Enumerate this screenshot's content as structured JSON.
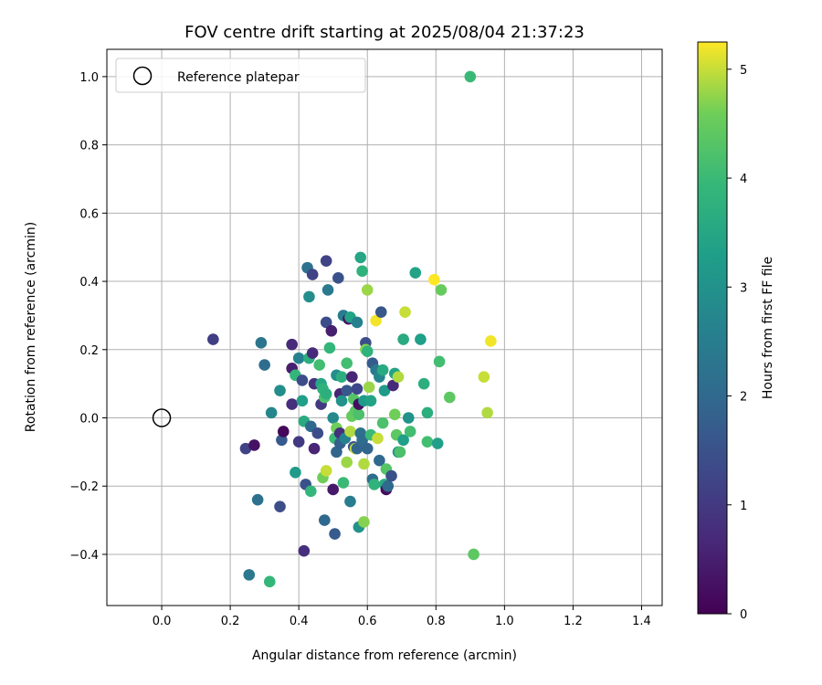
{
  "chart_data": {
    "type": "scatter",
    "title": "FOV centre drift starting at 2025/08/04 21:37:23",
    "xlabel": "Angular distance from reference (arcmin)",
    "ylabel": "Rotation from reference (arcmin)",
    "xlim": [
      -0.16,
      1.46
    ],
    "ylim": [
      -0.55,
      1.08
    ],
    "xticks": [
      "0.0",
      "0.2",
      "0.4",
      "0.6",
      "0.8",
      "1.0",
      "1.2",
      "1.4"
    ],
    "yticks": [
      "−0.4",
      "−0.2",
      "0.0",
      "0.2",
      "0.4",
      "0.6",
      "0.8",
      "1.0"
    ],
    "grid": true,
    "legend": {
      "position": "top-left",
      "entries": [
        "Reference platepar"
      ]
    },
    "reference_point": {
      "x": 0.0,
      "y": 0.0
    },
    "colorbar": {
      "label": "Hours from first FF file",
      "range": [
        0,
        5.25
      ],
      "ticks": [
        "0",
        "1",
        "2",
        "3",
        "4",
        "5"
      ],
      "colormap": "viridis"
    },
    "points": [
      {
        "x": 0.15,
        "y": 0.23,
        "c": 1.1
      },
      {
        "x": 0.245,
        "y": -0.09,
        "c": 1.2
      },
      {
        "x": 0.27,
        "y": -0.08,
        "c": 0.3
      },
      {
        "x": 0.28,
        "y": -0.24,
        "c": 2.2
      },
      {
        "x": 0.29,
        "y": 0.22,
        "c": 2.3
      },
      {
        "x": 0.3,
        "y": 0.155,
        "c": 2.1
      },
      {
        "x": 0.255,
        "y": -0.46,
        "c": 2.4
      },
      {
        "x": 0.32,
        "y": 0.015,
        "c": 2.7
      },
      {
        "x": 0.315,
        "y": -0.48,
        "c": 3.9
      },
      {
        "x": 0.345,
        "y": -0.26,
        "c": 1.4
      },
      {
        "x": 0.345,
        "y": 0.08,
        "c": 2.9
      },
      {
        "x": 0.35,
        "y": -0.065,
        "c": 1.7
      },
      {
        "x": 0.355,
        "y": -0.04,
        "c": 0.1
      },
      {
        "x": 0.38,
        "y": 0.215,
        "c": 0.7
      },
      {
        "x": 0.38,
        "y": 0.145,
        "c": 0.5
      },
      {
        "x": 0.38,
        "y": 0.04,
        "c": 0.8
      },
      {
        "x": 0.39,
        "y": -0.16,
        "c": 3.2
      },
      {
        "x": 0.39,
        "y": 0.125,
        "c": 3.9
      },
      {
        "x": 0.4,
        "y": 0.175,
        "c": 2.6
      },
      {
        "x": 0.4,
        "y": -0.07,
        "c": 1.0
      },
      {
        "x": 0.41,
        "y": 0.05,
        "c": 3.3
      },
      {
        "x": 0.41,
        "y": 0.11,
        "c": 1.4
      },
      {
        "x": 0.415,
        "y": -0.39,
        "c": 0.8
      },
      {
        "x": 0.415,
        "y": -0.01,
        "c": 3.6
      },
      {
        "x": 0.42,
        "y": -0.195,
        "c": 1.5
      },
      {
        "x": 0.425,
        "y": 0.44,
        "c": 2.2
      },
      {
        "x": 0.43,
        "y": 0.355,
        "c": 2.9
      },
      {
        "x": 0.43,
        "y": 0.175,
        "c": 3.7
      },
      {
        "x": 0.435,
        "y": -0.025,
        "c": 2.0
      },
      {
        "x": 0.435,
        "y": -0.215,
        "c": 3.9
      },
      {
        "x": 0.44,
        "y": 0.42,
        "c": 1.2
      },
      {
        "x": 0.44,
        "y": 0.19,
        "c": 0.7
      },
      {
        "x": 0.445,
        "y": 0.1,
        "c": 0.9
      },
      {
        "x": 0.445,
        "y": -0.09,
        "c": 0.6
      },
      {
        "x": 0.455,
        "y": -0.045,
        "c": 1.4
      },
      {
        "x": 0.46,
        "y": 0.155,
        "c": 4.1
      },
      {
        "x": 0.465,
        "y": 0.1,
        "c": 3.5
      },
      {
        "x": 0.465,
        "y": 0.04,
        "c": 1.0
      },
      {
        "x": 0.47,
        "y": 0.085,
        "c": 3.8
      },
      {
        "x": 0.47,
        "y": -0.175,
        "c": 4.6
      },
      {
        "x": 0.475,
        "y": 0.06,
        "c": 4.2
      },
      {
        "x": 0.475,
        "y": -0.3,
        "c": 2.0
      },
      {
        "x": 0.48,
        "y": 0.46,
        "c": 1.2
      },
      {
        "x": 0.48,
        "y": 0.28,
        "c": 1.4
      },
      {
        "x": 0.48,
        "y": 0.07,
        "c": 3.7
      },
      {
        "x": 0.48,
        "y": -0.155,
        "c": 5.0
      },
      {
        "x": 0.485,
        "y": 0.375,
        "c": 2.4
      },
      {
        "x": 0.49,
        "y": 0.205,
        "c": 3.9
      },
      {
        "x": 0.495,
        "y": 0.255,
        "c": 0.5
      },
      {
        "x": 0.5,
        "y": -0.21,
        "c": 0.4
      },
      {
        "x": 0.5,
        "y": 0.0,
        "c": 2.8
      },
      {
        "x": 0.505,
        "y": -0.06,
        "c": 4.0
      },
      {
        "x": 0.505,
        "y": -0.34,
        "c": 1.7
      },
      {
        "x": 0.51,
        "y": 0.125,
        "c": 2.9
      },
      {
        "x": 0.51,
        "y": -0.1,
        "c": 1.9
      },
      {
        "x": 0.51,
        "y": -0.03,
        "c": 4.6
      },
      {
        "x": 0.515,
        "y": 0.41,
        "c": 1.5
      },
      {
        "x": 0.52,
        "y": 0.07,
        "c": 0.6
      },
      {
        "x": 0.52,
        "y": -0.045,
        "c": 0.8
      },
      {
        "x": 0.52,
        "y": -0.075,
        "c": 1.8
      },
      {
        "x": 0.525,
        "y": 0.12,
        "c": 3.7
      },
      {
        "x": 0.525,
        "y": 0.05,
        "c": 3.0
      },
      {
        "x": 0.53,
        "y": -0.19,
        "c": 4.0
      },
      {
        "x": 0.53,
        "y": 0.3,
        "c": 2.5
      },
      {
        "x": 0.535,
        "y": -0.06,
        "c": 2.6
      },
      {
        "x": 0.54,
        "y": 0.16,
        "c": 4.1
      },
      {
        "x": 0.54,
        "y": -0.13,
        "c": 4.8
      },
      {
        "x": 0.54,
        "y": 0.08,
        "c": 1.6
      },
      {
        "x": 0.545,
        "y": 0.29,
        "c": 0.3
      },
      {
        "x": 0.55,
        "y": 0.295,
        "c": 3.4
      },
      {
        "x": 0.55,
        "y": -0.245,
        "c": 2.5
      },
      {
        "x": 0.55,
        "y": -0.04,
        "c": 4.9
      },
      {
        "x": 0.555,
        "y": 0.12,
        "c": 0.6
      },
      {
        "x": 0.555,
        "y": 0.005,
        "c": 4.5
      },
      {
        "x": 0.56,
        "y": 0.055,
        "c": 4.3
      },
      {
        "x": 0.56,
        "y": -0.085,
        "c": 1.5
      },
      {
        "x": 0.565,
        "y": 0.02,
        "c": 4.4
      },
      {
        "x": 0.565,
        "y": -0.09,
        "c": 5.0
      },
      {
        "x": 0.57,
        "y": 0.28,
        "c": 2.6
      },
      {
        "x": 0.57,
        "y": 0.085,
        "c": 1.3
      },
      {
        "x": 0.57,
        "y": -0.09,
        "c": 1.9
      },
      {
        "x": 0.575,
        "y": 0.01,
        "c": 4.2
      },
      {
        "x": 0.575,
        "y": -0.32,
        "c": 3.0
      },
      {
        "x": 0.575,
        "y": 0.04,
        "c": 0.2
      },
      {
        "x": 0.58,
        "y": -0.045,
        "c": 2.2
      },
      {
        "x": 0.58,
        "y": 0.47,
        "c": 3.5
      },
      {
        "x": 0.585,
        "y": 0.43,
        "c": 3.8
      },
      {
        "x": 0.585,
        "y": -0.065,
        "c": 2.1
      },
      {
        "x": 0.59,
        "y": -0.135,
        "c": 4.9
      },
      {
        "x": 0.59,
        "y": 0.05,
        "c": 3.2
      },
      {
        "x": 0.59,
        "y": -0.305,
        "c": 4.7
      },
      {
        "x": 0.595,
        "y": 0.22,
        "c": 1.4
      },
      {
        "x": 0.595,
        "y": 0.2,
        "c": 4.7
      },
      {
        "x": 0.6,
        "y": -0.09,
        "c": 1.9
      },
      {
        "x": 0.6,
        "y": 0.375,
        "c": 4.8
      },
      {
        "x": 0.6,
        "y": 0.195,
        "c": 3.8
      },
      {
        "x": 0.605,
        "y": 0.09,
        "c": 4.8
      },
      {
        "x": 0.61,
        "y": 0.05,
        "c": 3.4
      },
      {
        "x": 0.61,
        "y": -0.05,
        "c": 4.0
      },
      {
        "x": 0.615,
        "y": 0.16,
        "c": 1.7
      },
      {
        "x": 0.615,
        "y": -0.18,
        "c": 2.1
      },
      {
        "x": 0.62,
        "y": -0.195,
        "c": 3.8
      },
      {
        "x": 0.625,
        "y": 0.285,
        "c": 5.2
      },
      {
        "x": 0.625,
        "y": 0.14,
        "c": 2.4
      },
      {
        "x": 0.63,
        "y": -0.06,
        "c": 5.0
      },
      {
        "x": 0.635,
        "y": 0.12,
        "c": 2.7
      },
      {
        "x": 0.635,
        "y": -0.125,
        "c": 2.0
      },
      {
        "x": 0.64,
        "y": 0.31,
        "c": 1.6
      },
      {
        "x": 0.645,
        "y": 0.14,
        "c": 3.6
      },
      {
        "x": 0.645,
        "y": -0.015,
        "c": 4.2
      },
      {
        "x": 0.65,
        "y": -0.195,
        "c": 3.6
      },
      {
        "x": 0.65,
        "y": 0.08,
        "c": 3.2
      },
      {
        "x": 0.655,
        "y": -0.21,
        "c": 0.2
      },
      {
        "x": 0.655,
        "y": -0.15,
        "c": 4.3
      },
      {
        "x": 0.66,
        "y": -0.2,
        "c": 2.0
      },
      {
        "x": 0.67,
        "y": -0.17,
        "c": 1.5
      },
      {
        "x": 0.675,
        "y": 0.095,
        "c": 0.7
      },
      {
        "x": 0.68,
        "y": 0.13,
        "c": 3.4
      },
      {
        "x": 0.68,
        "y": 0.01,
        "c": 4.6
      },
      {
        "x": 0.685,
        "y": -0.05,
        "c": 4.4
      },
      {
        "x": 0.69,
        "y": 0.12,
        "c": 4.9
      },
      {
        "x": 0.69,
        "y": -0.1,
        "c": 3.0
      },
      {
        "x": 0.695,
        "y": -0.1,
        "c": 4.2
      },
      {
        "x": 0.705,
        "y": 0.23,
        "c": 3.6
      },
      {
        "x": 0.705,
        "y": -0.065,
        "c": 3.3
      },
      {
        "x": 0.71,
        "y": 0.31,
        "c": 5.0
      },
      {
        "x": 0.72,
        "y": 0.0,
        "c": 3.0
      },
      {
        "x": 0.725,
        "y": -0.04,
        "c": 4.1
      },
      {
        "x": 0.74,
        "y": 0.425,
        "c": 3.4
      },
      {
        "x": 0.755,
        "y": 0.23,
        "c": 3.3
      },
      {
        "x": 0.765,
        "y": 0.1,
        "c": 3.7
      },
      {
        "x": 0.775,
        "y": 0.015,
        "c": 3.7
      },
      {
        "x": 0.775,
        "y": -0.07,
        "c": 4.1
      },
      {
        "x": 0.795,
        "y": 0.405,
        "c": 5.25
      },
      {
        "x": 0.805,
        "y": -0.075,
        "c": 3.3
      },
      {
        "x": 0.81,
        "y": 0.165,
        "c": 4.1
      },
      {
        "x": 0.815,
        "y": 0.375,
        "c": 4.5
      },
      {
        "x": 0.84,
        "y": 0.06,
        "c": 4.4
      },
      {
        "x": 0.9,
        "y": 1.0,
        "c": 4.0
      },
      {
        "x": 0.91,
        "y": -0.4,
        "c": 4.4
      },
      {
        "x": 0.94,
        "y": 0.12,
        "c": 5.0
      },
      {
        "x": 0.95,
        "y": 0.015,
        "c": 4.9
      },
      {
        "x": 0.96,
        "y": 0.225,
        "c": 5.2
      }
    ]
  }
}
